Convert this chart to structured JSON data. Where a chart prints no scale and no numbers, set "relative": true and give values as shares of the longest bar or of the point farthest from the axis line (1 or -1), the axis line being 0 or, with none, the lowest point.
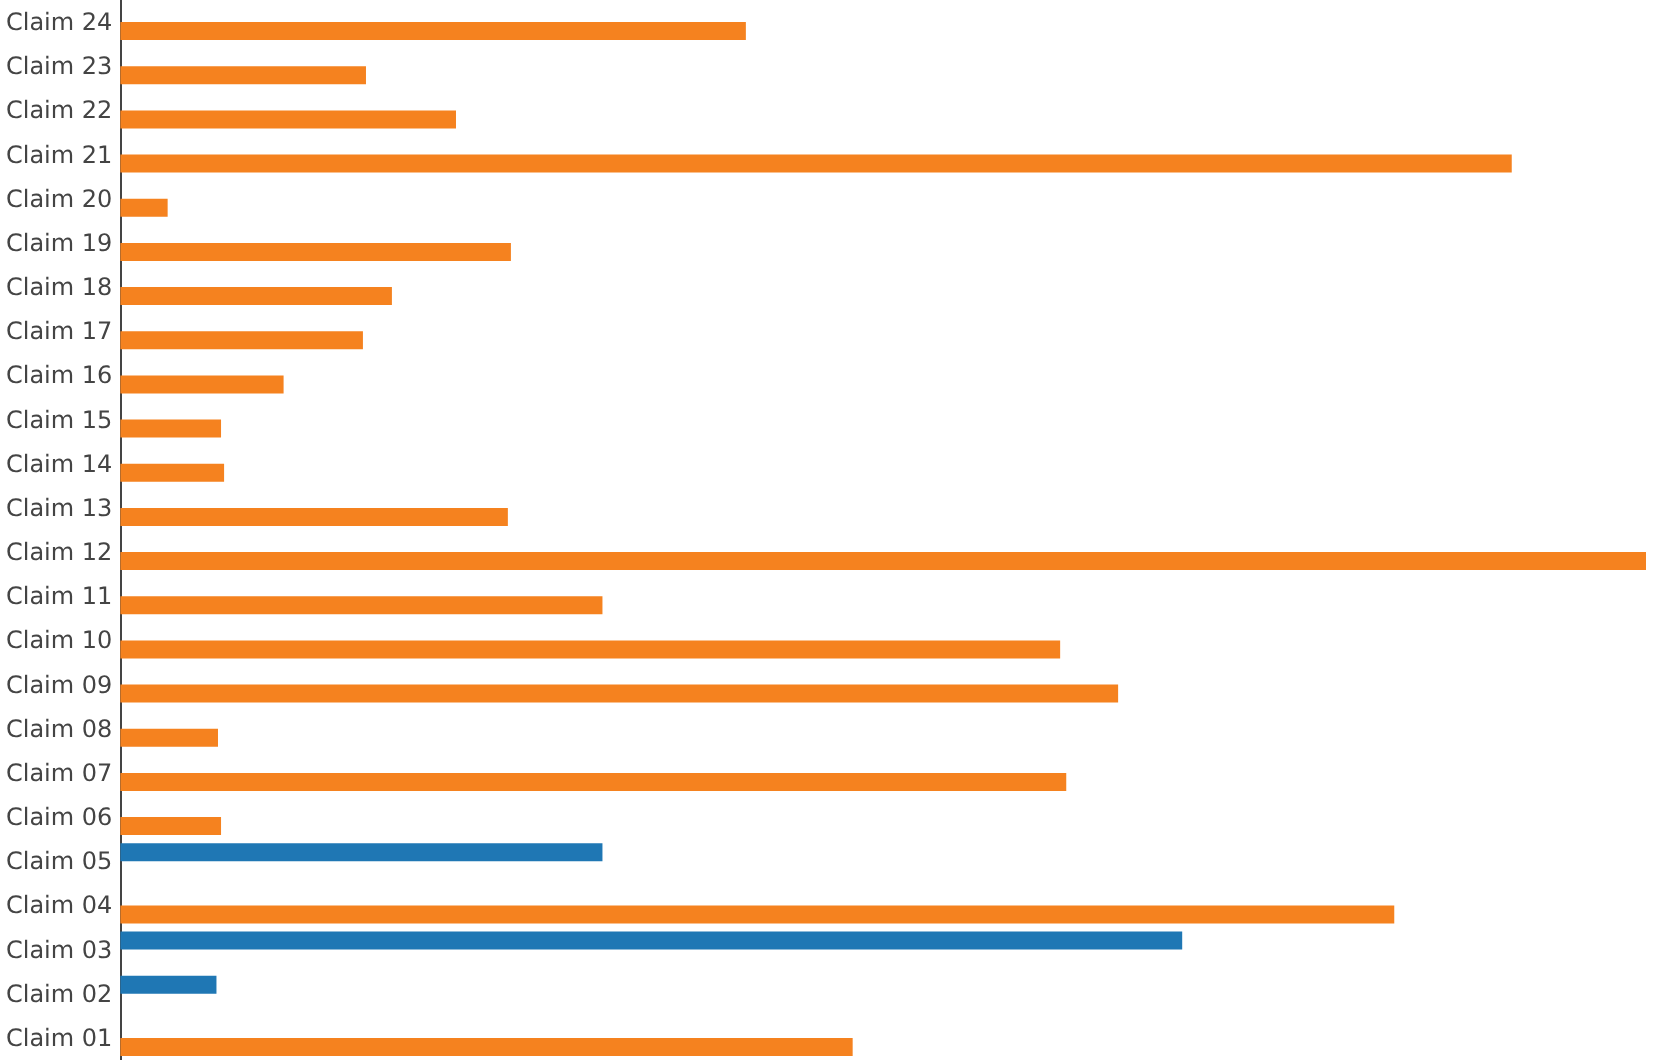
{
  "chart_data": {
    "type": "bar",
    "orientation": "horizontal",
    "relative": true,
    "categories": [
      "Claim 24",
      "Claim 23",
      "Claim 22",
      "Claim 21",
      "Claim 20",
      "Claim 19",
      "Claim 18",
      "Claim 17",
      "Claim 16",
      "Claim 15",
      "Claim 14",
      "Claim 13",
      "Claim 12",
      "Claim 11",
      "Claim 10",
      "Claim 09",
      "Claim 08",
      "Claim 07",
      "Claim 06",
      "Claim 05",
      "Claim 04",
      "Claim 03",
      "Claim 02",
      "Claim 01"
    ],
    "series": [
      {
        "color": "#1f77b4",
        "values": [
          null,
          null,
          null,
          null,
          null,
          null,
          null,
          null,
          null,
          null,
          null,
          null,
          null,
          null,
          null,
          null,
          null,
          null,
          null,
          0.316,
          null,
          0.696,
          0.063,
          null
        ]
      },
      {
        "color": "#f5821f",
        "values": [
          0.41,
          0.161,
          0.22,
          0.912,
          0.031,
          0.256,
          0.178,
          0.159,
          0.107,
          0.066,
          0.068,
          0.254,
          1,
          0.316,
          0.616,
          0.654,
          0.064,
          0.62,
          0.066,
          null,
          0.835,
          null,
          null,
          0.48
        ]
      }
    ]
  }
}
